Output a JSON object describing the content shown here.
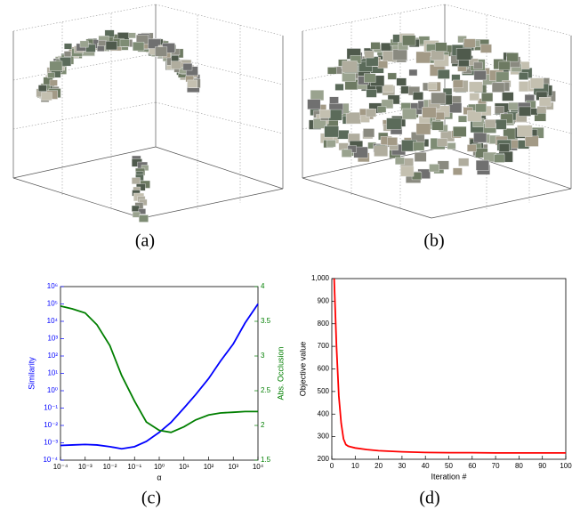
{
  "captions": [
    "(a)",
    "(b)",
    "(c)",
    "(d)"
  ],
  "chart_data": [
    {
      "type": "line",
      "xscale": "log",
      "yscale": "log",
      "xlabel": "α",
      "ylabel": "Similarity",
      "y2label": "Abs. Occlusion",
      "xlim": [
        0.0001,
        10000
      ],
      "xticks": [
        {
          "value": 0.0001,
          "label": "10⁻⁴"
        },
        {
          "value": 0.001,
          "label": "10⁻³"
        },
        {
          "value": 0.01,
          "label": "10⁻²"
        },
        {
          "value": 0.1,
          "label": "10⁻¹"
        },
        {
          "value": 1,
          "label": "10⁰"
        },
        {
          "value": 10,
          "label": "10¹"
        },
        {
          "value": 100,
          "label": "10²"
        },
        {
          "value": 1000,
          "label": "10³"
        },
        {
          "value": 10000,
          "label": "10⁴"
        }
      ],
      "ylim": [
        0.0001,
        1000000
      ],
      "yticks": [
        {
          "value": 0.0001,
          "label": "10⁻⁴"
        },
        {
          "value": 0.001,
          "label": "10⁻³"
        },
        {
          "value": 0.01,
          "label": "10⁻²"
        },
        {
          "value": 0.1,
          "label": "10⁻¹"
        },
        {
          "value": 1,
          "label": "10⁰"
        },
        {
          "value": 10,
          "label": "10¹"
        },
        {
          "value": 100,
          "label": "10²"
        },
        {
          "value": 1000,
          "label": "10³"
        },
        {
          "value": 10000,
          "label": "10⁴"
        },
        {
          "value": 100000,
          "label": "10⁵"
        },
        {
          "value": 1000000,
          "label": "10⁶"
        }
      ],
      "y2lim": [
        1.5,
        4
      ],
      "y2ticks": [
        1.5,
        2,
        2.5,
        3,
        3.5,
        4
      ],
      "x": [
        0.0001,
        0.0003,
        0.001,
        0.003,
        0.01,
        0.03,
        0.1,
        0.3,
        1,
        3,
        10,
        30,
        100,
        300,
        1000,
        3000,
        10000
      ],
      "series": [
        {
          "name": "Similarity",
          "color": "#0000ff",
          "axis": "y",
          "values": [
            0.0007,
            0.00075,
            0.0008,
            0.00075,
            0.0006,
            0.00045,
            0.0006,
            0.0012,
            0.004,
            0.015,
            0.1,
            0.6,
            5,
            50,
            500,
            8000,
            100000
          ]
        },
        {
          "name": "Abs. Occlusion",
          "color": "#007f00",
          "axis": "y2",
          "values": [
            3.72,
            3.68,
            3.62,
            3.45,
            3.15,
            2.72,
            2.35,
            2.05,
            1.93,
            1.9,
            1.98,
            2.08,
            2.15,
            2.18,
            2.19,
            2.2,
            2.2
          ]
        }
      ]
    },
    {
      "type": "line",
      "xlabel": "Iteration #",
      "ylabel": "Objective value",
      "xlim": [
        0,
        100
      ],
      "xticks": [
        0,
        10,
        20,
        30,
        40,
        50,
        60,
        70,
        80,
        90,
        100
      ],
      "ylim": [
        200,
        1000
      ],
      "yticks": [
        200,
        300,
        400,
        500,
        600,
        700,
        800,
        900,
        {
          "value": 1000,
          "label": "1,000"
        }
      ],
      "x": [
        1,
        2,
        3,
        4,
        5,
        6,
        7,
        8,
        10,
        15,
        20,
        30,
        40,
        50,
        60,
        70,
        80,
        90,
        100
      ],
      "series": [
        {
          "name": "Objective value",
          "color": "#ff0000",
          "axis": "y",
          "values": [
            1000,
            700,
            480,
            360,
            290,
            265,
            258,
            255,
            250,
            243,
            238,
            233,
            230,
            229,
            229,
            228,
            228,
            228,
            228
          ]
        }
      ]
    }
  ]
}
